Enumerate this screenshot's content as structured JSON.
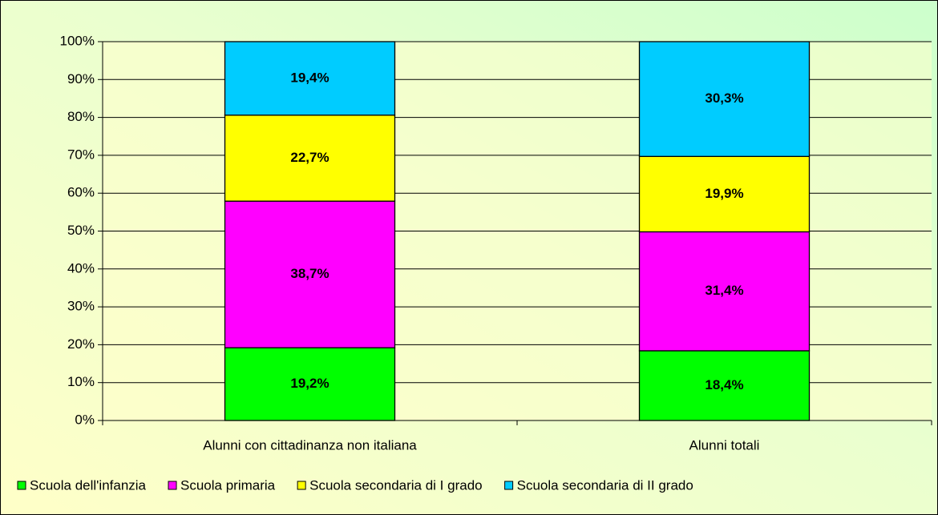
{
  "chart_data": {
    "type": "stacked_bar",
    "categories": [
      "Alunni con cittadinanza non italiana",
      "Alunni totali"
    ],
    "series": [
      {
        "name": "Scuola dell'infanzia",
        "color": "#00ff00",
        "values": [
          19.2,
          18.4
        ],
        "value_labels": [
          "19,2%",
          "18,4%"
        ]
      },
      {
        "name": "Scuola primaria",
        "color": "#ff00ff",
        "values": [
          38.7,
          31.4
        ],
        "value_labels": [
          "38,7%",
          "31,4%"
        ]
      },
      {
        "name": "Scuola secondaria di I grado",
        "color": "#ffff00",
        "values": [
          22.7,
          19.9
        ],
        "value_labels": [
          "22,7%",
          "19,9%"
        ]
      },
      {
        "name": "Scuola secondaria di II grado",
        "color": "#00ccff",
        "values": [
          19.4,
          30.3
        ],
        "value_labels": [
          "19,4%",
          "30,3%"
        ]
      }
    ],
    "ylim": [
      0,
      100
    ],
    "yticks": [
      {
        "value": 0,
        "label": "0%"
      },
      {
        "value": 10,
        "label": "10%"
      },
      {
        "value": 20,
        "label": "20%"
      },
      {
        "value": 30,
        "label": "30%"
      },
      {
        "value": 40,
        "label": "40%"
      },
      {
        "value": 50,
        "label": "50%"
      },
      {
        "value": 60,
        "label": "60%"
      },
      {
        "value": 70,
        "label": "70%"
      },
      {
        "value": 80,
        "label": "80%"
      },
      {
        "value": 90,
        "label": "90%"
      },
      {
        "value": 100,
        "label": "100%"
      }
    ],
    "grid": true,
    "legend": "bottom"
  }
}
